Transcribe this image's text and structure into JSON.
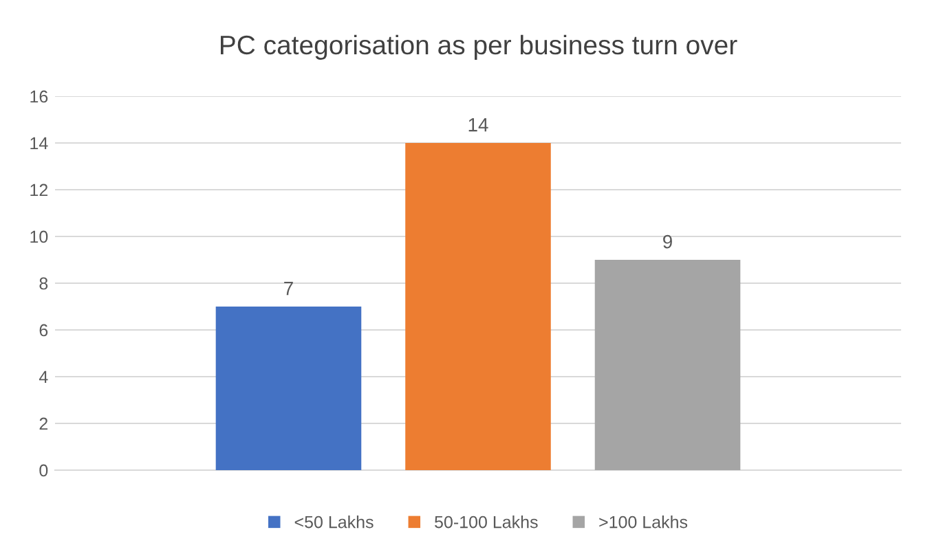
{
  "chart_data": {
    "type": "bar",
    "title": "PC categorisation as per business turn over",
    "categories": [
      null
    ],
    "series": [
      {
        "name": "<50 Lakhs",
        "color": "#4472c4",
        "values": [
          7
        ]
      },
      {
        "name": "50-100 Lakhs",
        "color": "#ed7d31",
        "values": [
          14
        ]
      },
      {
        "name": ">100 Lakhs",
        "color": "#a5a5a5",
        "values": [
          9
        ]
      }
    ],
    "ylim": [
      0,
      16
    ],
    "yticks": [
      0,
      2,
      4,
      6,
      8,
      10,
      12,
      14,
      16
    ],
    "grid": "y",
    "legend": "bottom",
    "data_labels": true
  }
}
